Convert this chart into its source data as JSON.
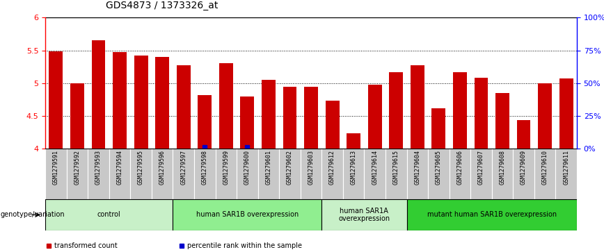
{
  "title": "GDS4873 / 1373326_at",
  "samples": [
    "GSM1279591",
    "GSM1279592",
    "GSM1279593",
    "GSM1279594",
    "GSM1279595",
    "GSM1279596",
    "GSM1279597",
    "GSM1279598",
    "GSM1279599",
    "GSM1279600",
    "GSM1279601",
    "GSM1279602",
    "GSM1279603",
    "GSM1279612",
    "GSM1279613",
    "GSM1279614",
    "GSM1279615",
    "GSM1279604",
    "GSM1279605",
    "GSM1279606",
    "GSM1279607",
    "GSM1279608",
    "GSM1279609",
    "GSM1279610",
    "GSM1279611"
  ],
  "values": [
    5.49,
    5.0,
    5.65,
    5.47,
    5.42,
    5.4,
    5.27,
    4.82,
    5.3,
    4.8,
    5.05,
    4.95,
    4.95,
    4.73,
    4.23,
    4.98,
    5.17,
    5.27,
    4.62,
    5.17,
    5.08,
    4.85,
    4.44,
    5.0,
    5.07
  ],
  "percentile_values": [
    0,
    0,
    0,
    0,
    0,
    0,
    0,
    1,
    0,
    1,
    0,
    0,
    0,
    0,
    0,
    0,
    0,
    0,
    0,
    0,
    0,
    0,
    0,
    0,
    0
  ],
  "bar_color": "#cc0000",
  "percentile_color": "#0000cc",
  "ylim": [
    4.0,
    6.0
  ],
  "yticks": [
    4.0,
    4.5,
    5.0,
    5.5,
    6.0
  ],
  "ytick_labels_left": [
    "4",
    "4.5",
    "5",
    "5.5",
    "6"
  ],
  "ytick_labels_right": [
    "0%",
    "25%",
    "50%",
    "75%",
    "100%"
  ],
  "grid_values": [
    4.5,
    5.0,
    5.5
  ],
  "groups": [
    {
      "label": "control",
      "start": 0,
      "end": 6,
      "color": "#c8f0c8"
    },
    {
      "label": "human SAR1B overexpression",
      "start": 6,
      "end": 13,
      "color": "#90ee90"
    },
    {
      "label": "human SAR1A\noverexpression",
      "start": 13,
      "end": 17,
      "color": "#c8f0c8"
    },
    {
      "label": "mutant human SAR1B overexpression",
      "start": 17,
      "end": 25,
      "color": "#32cd32"
    }
  ],
  "legend_items": [
    {
      "color": "#cc0000",
      "label": "transformed count"
    },
    {
      "color": "#0000cc",
      "label": "percentile rank within the sample"
    }
  ],
  "xlabel_label": "genotype/variation",
  "tick_label_bg": "#c8c8c8"
}
